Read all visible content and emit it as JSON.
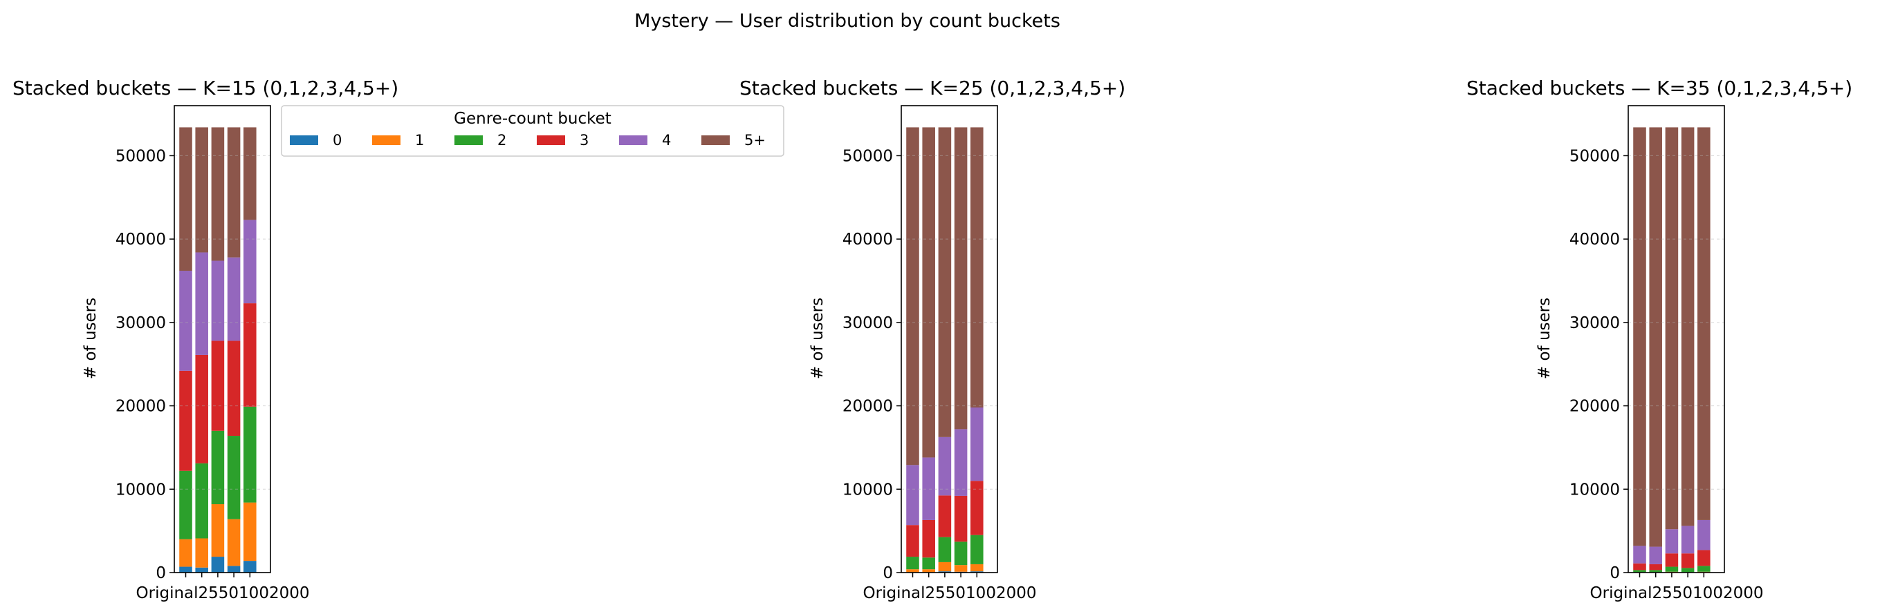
{
  "figure": {
    "suptitle": "Mystery — User distribution by count buckets"
  },
  "legend": {
    "title": "Genre-count bucket",
    "entries": [
      {
        "label": "0",
        "color": "#1f77b4"
      },
      {
        "label": "1",
        "color": "#ff7f0e"
      },
      {
        "label": "2",
        "color": "#2ca02c"
      },
      {
        "label": "3",
        "color": "#d62728"
      },
      {
        "label": "4",
        "color": "#9467bd"
      },
      {
        "label": "5+",
        "color": "#8c564b"
      }
    ]
  },
  "chart_data": [
    {
      "type": "bar",
      "stacked": true,
      "title": "Stacked buckets — K=15  (0,1,2,3,4,5+)",
      "ylabel": "# of users",
      "ylim": [
        0,
        56000
      ],
      "yticks": [
        0,
        10000,
        20000,
        30000,
        40000,
        50000
      ],
      "xtick_text": "Original25501002000",
      "categories": [
        "Original",
        "25",
        "50",
        "100",
        "200"
      ],
      "series": [
        {
          "name": "0",
          "values": [
            700,
            600,
            1900,
            800,
            1400
          ]
        },
        {
          "name": "1",
          "values": [
            3300,
            3500,
            6300,
            5600,
            7000
          ]
        },
        {
          "name": "2",
          "values": [
            8200,
            9000,
            8800,
            10000,
            11500
          ]
        },
        {
          "name": "3",
          "values": [
            12000,
            13000,
            10800,
            11400,
            12400
          ]
        },
        {
          "name": "4",
          "values": [
            12000,
            12300,
            9600,
            10000,
            10000
          ]
        },
        {
          "name": "5+",
          "values": [
            17200,
            15000,
            16000,
            15600,
            11100
          ]
        }
      ]
    },
    {
      "type": "bar",
      "stacked": true,
      "title": "Stacked buckets — K=25  (0,1,2,3,4,5+)",
      "ylabel": "# of users",
      "ylim": [
        0,
        56000
      ],
      "yticks": [
        0,
        10000,
        20000,
        30000,
        40000,
        50000
      ],
      "xtick_text": "Original25501002000",
      "categories": [
        "Original",
        "25",
        "50",
        "100",
        "200"
      ],
      "series": [
        {
          "name": "0",
          "values": [
            50,
            50,
            150,
            100,
            150
          ]
        },
        {
          "name": "1",
          "values": [
            350,
            350,
            1100,
            800,
            850
          ]
        },
        {
          "name": "2",
          "values": [
            1500,
            1400,
            3000,
            2800,
            3500
          ]
        },
        {
          "name": "3",
          "values": [
            3800,
            4500,
            5000,
            5500,
            6500
          ]
        },
        {
          "name": "4",
          "values": [
            7200,
            7500,
            7000,
            8000,
            8800
          ]
        },
        {
          "name": "5+",
          "values": [
            40500,
            39600,
            37150,
            36200,
            33600
          ]
        }
      ]
    },
    {
      "type": "bar",
      "stacked": true,
      "title": "Stacked buckets — K=35  (0,1,2,3,4,5+)",
      "ylabel": "# of users",
      "ylim": [
        0,
        56000
      ],
      "yticks": [
        0,
        10000,
        20000,
        30000,
        40000,
        50000
      ],
      "xtick_text": "Original25501002000",
      "categories": [
        "Original",
        "25",
        "50",
        "100",
        "200"
      ],
      "series": [
        {
          "name": "0",
          "values": [
            0,
            0,
            0,
            0,
            0
          ]
        },
        {
          "name": "1",
          "values": [
            50,
            50,
            100,
            50,
            100
          ]
        },
        {
          "name": "2",
          "values": [
            250,
            250,
            600,
            500,
            700
          ]
        },
        {
          "name": "3",
          "values": [
            800,
            700,
            1600,
            1750,
            1900
          ]
        },
        {
          "name": "4",
          "values": [
            2100,
            2100,
            2900,
            3300,
            3600
          ]
        },
        {
          "name": "5+",
          "values": [
            50200,
            50300,
            48200,
            47800,
            47100
          ]
        }
      ]
    }
  ]
}
